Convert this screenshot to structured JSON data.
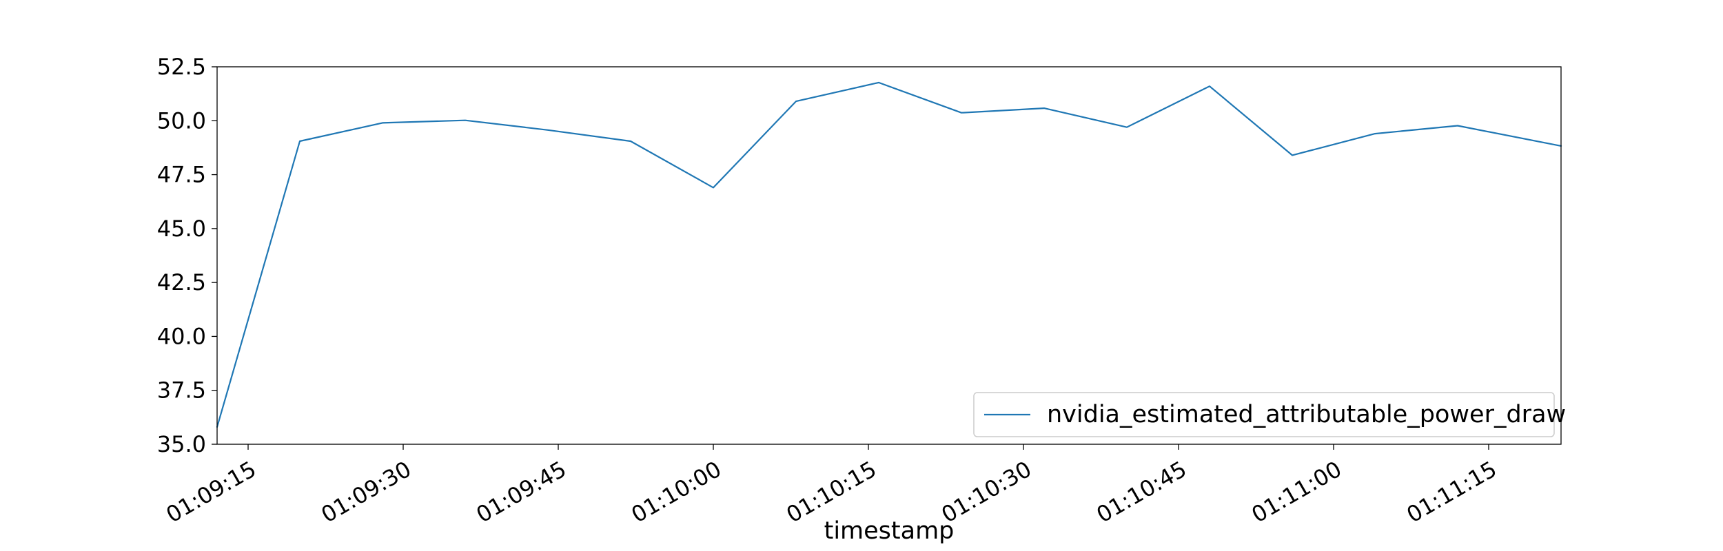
{
  "chart_data": {
    "type": "line",
    "title": "",
    "xlabel": "timestamp",
    "ylabel": "",
    "x": [
      "01:09:12",
      "01:09:20",
      "01:09:28",
      "01:09:36",
      "01:09:44",
      "01:09:52",
      "01:10:00",
      "01:10:08",
      "01:10:16",
      "01:10:24",
      "01:10:32",
      "01:10:40",
      "01:10:48",
      "01:10:56",
      "01:11:04",
      "01:11:12",
      "01:11:22"
    ],
    "series": [
      {
        "name": "nvidia_estimated_attributable_power_draw",
        "color": "#1f77b4",
        "values": [
          35.8,
          49.05,
          49.9,
          50.02,
          49.57,
          49.05,
          46.9,
          50.9,
          51.77,
          50.37,
          50.58,
          49.7,
          51.6,
          48.4,
          49.4,
          49.77,
          48.83
        ]
      }
    ],
    "xlim": [
      "01:09:12",
      "01:11:22"
    ],
    "ylim": [
      35.0,
      52.5
    ],
    "xticks": [
      "01:09:15",
      "01:09:30",
      "01:09:45",
      "01:10:00",
      "01:10:15",
      "01:10:30",
      "01:10:45",
      "01:11:00",
      "01:11:15"
    ],
    "yticks": [
      "35.0",
      "37.5",
      "40.0",
      "42.5",
      "45.0",
      "47.5",
      "50.0",
      "52.5"
    ],
    "grid": false,
    "legend_position": "lower-right"
  }
}
